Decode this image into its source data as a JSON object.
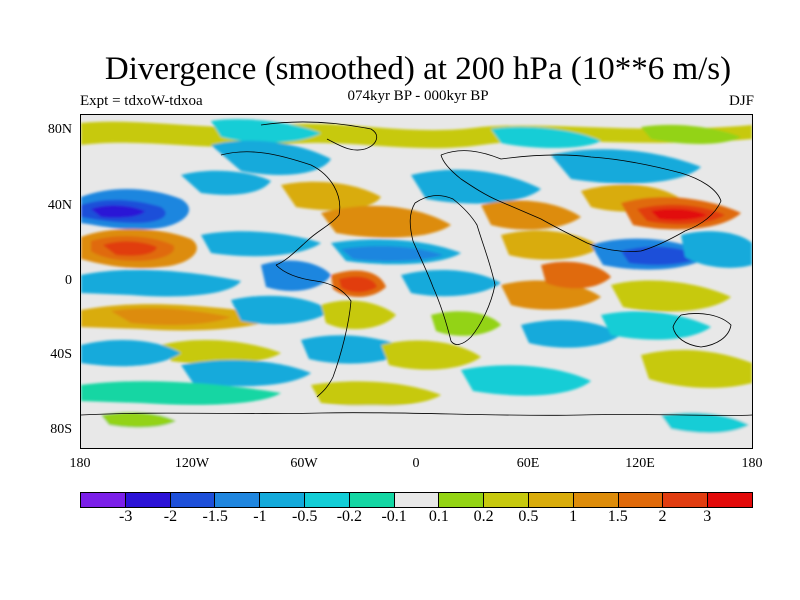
{
  "title": "Divergence (smoothed) at 200 hPa (10**6 m/s)",
  "experiment": "Expt = tdxoW-tdxoa",
  "period": "074kyr BP - 000kyr BP",
  "season": "DJF",
  "map": {
    "projection": "cylindrical equidistant",
    "lon_range": [
      -180,
      180
    ],
    "lat_range": [
      -90,
      90
    ],
    "lat_labels": [
      "80N",
      "40N",
      "0",
      "40S",
      "80S"
    ],
    "lon_labels": [
      "180",
      "120W",
      "60W",
      "0",
      "60E",
      "120E",
      "180"
    ],
    "background_color": "#e8e8e8"
  },
  "colorbar": {
    "colors": [
      "#7b1fe8",
      "#2b12d6",
      "#1d4fd9",
      "#1f86df",
      "#13aadb",
      "#12cdd6",
      "#13d6a3",
      "#e8e8e8",
      "#93d313",
      "#c7c90e",
      "#d9ac0b",
      "#dd8c0a",
      "#e06a0a",
      "#e13d11",
      "#e20a0a"
    ],
    "labels": [
      "-3",
      "-2",
      "-1.5",
      "-1",
      "-0.5",
      "-0.2",
      "-0.1",
      "0.1",
      "0.2",
      "0.5",
      "1",
      "1.5",
      "2",
      "3"
    ]
  }
}
